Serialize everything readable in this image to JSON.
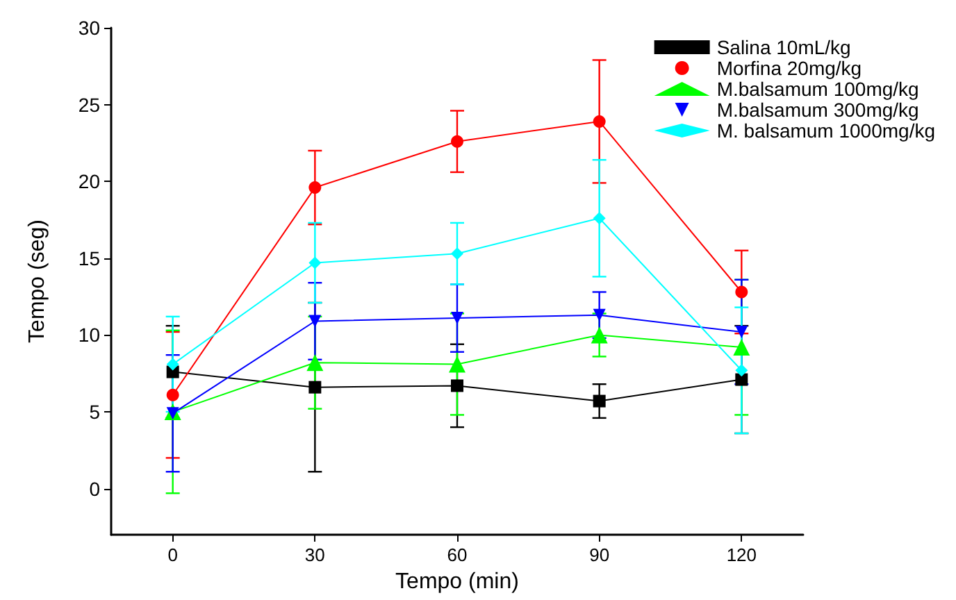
{
  "chart_data": {
    "type": "line",
    "xlabel": "Tempo (min)",
    "ylabel": "Tempo (seg)",
    "x": [
      0,
      30,
      60,
      90,
      120
    ],
    "xlim": [
      -13,
      133
    ],
    "xticks": [
      0,
      30,
      60,
      90,
      120
    ],
    "ylim": [
      -3,
      30
    ],
    "yticks": [
      0,
      5,
      10,
      15,
      20,
      25,
      30
    ],
    "grid": false,
    "legend": "top right",
    "line_style": "solid",
    "series": [
      {
        "name": "Salina 10mL/kg",
        "color": "#000000",
        "marker": "square",
        "values": [
          7.6,
          6.6,
          6.7,
          5.7,
          7.1
        ],
        "errors": [
          3.0,
          5.5,
          2.7,
          1.1,
          3.5
        ]
      },
      {
        "name": "Morfina 20mg/kg",
        "color": "#ff0000",
        "marker": "circle",
        "values": [
          6.1,
          19.6,
          22.6,
          23.9,
          12.8
        ],
        "errors": [
          4.1,
          2.4,
          2.0,
          4.0,
          2.7
        ]
      },
      {
        "name": "M.balsamum 100mg/kg",
        "color": "#00ff00",
        "marker": "triangle",
        "values": [
          5.0,
          8.2,
          8.1,
          10.0,
          9.2
        ],
        "errors": [
          5.3,
          3.0,
          3.3,
          1.4,
          4.4
        ]
      },
      {
        "name": "M.balsamum 300mg/kg",
        "color": "#0000ff",
        "marker": "triangle-down",
        "values": [
          4.9,
          10.9,
          11.1,
          11.3,
          10.2
        ],
        "errors": [
          3.8,
          2.5,
          2.2,
          1.5,
          3.4
        ]
      },
      {
        "name": "M. balsamum 1000mg/kg",
        "color": "#00ffff",
        "marker": "diamond",
        "values": [
          8.1,
          14.7,
          15.3,
          17.6,
          7.7
        ],
        "errors": [
          3.1,
          2.6,
          2.0,
          3.8,
          4.1
        ]
      }
    ]
  }
}
